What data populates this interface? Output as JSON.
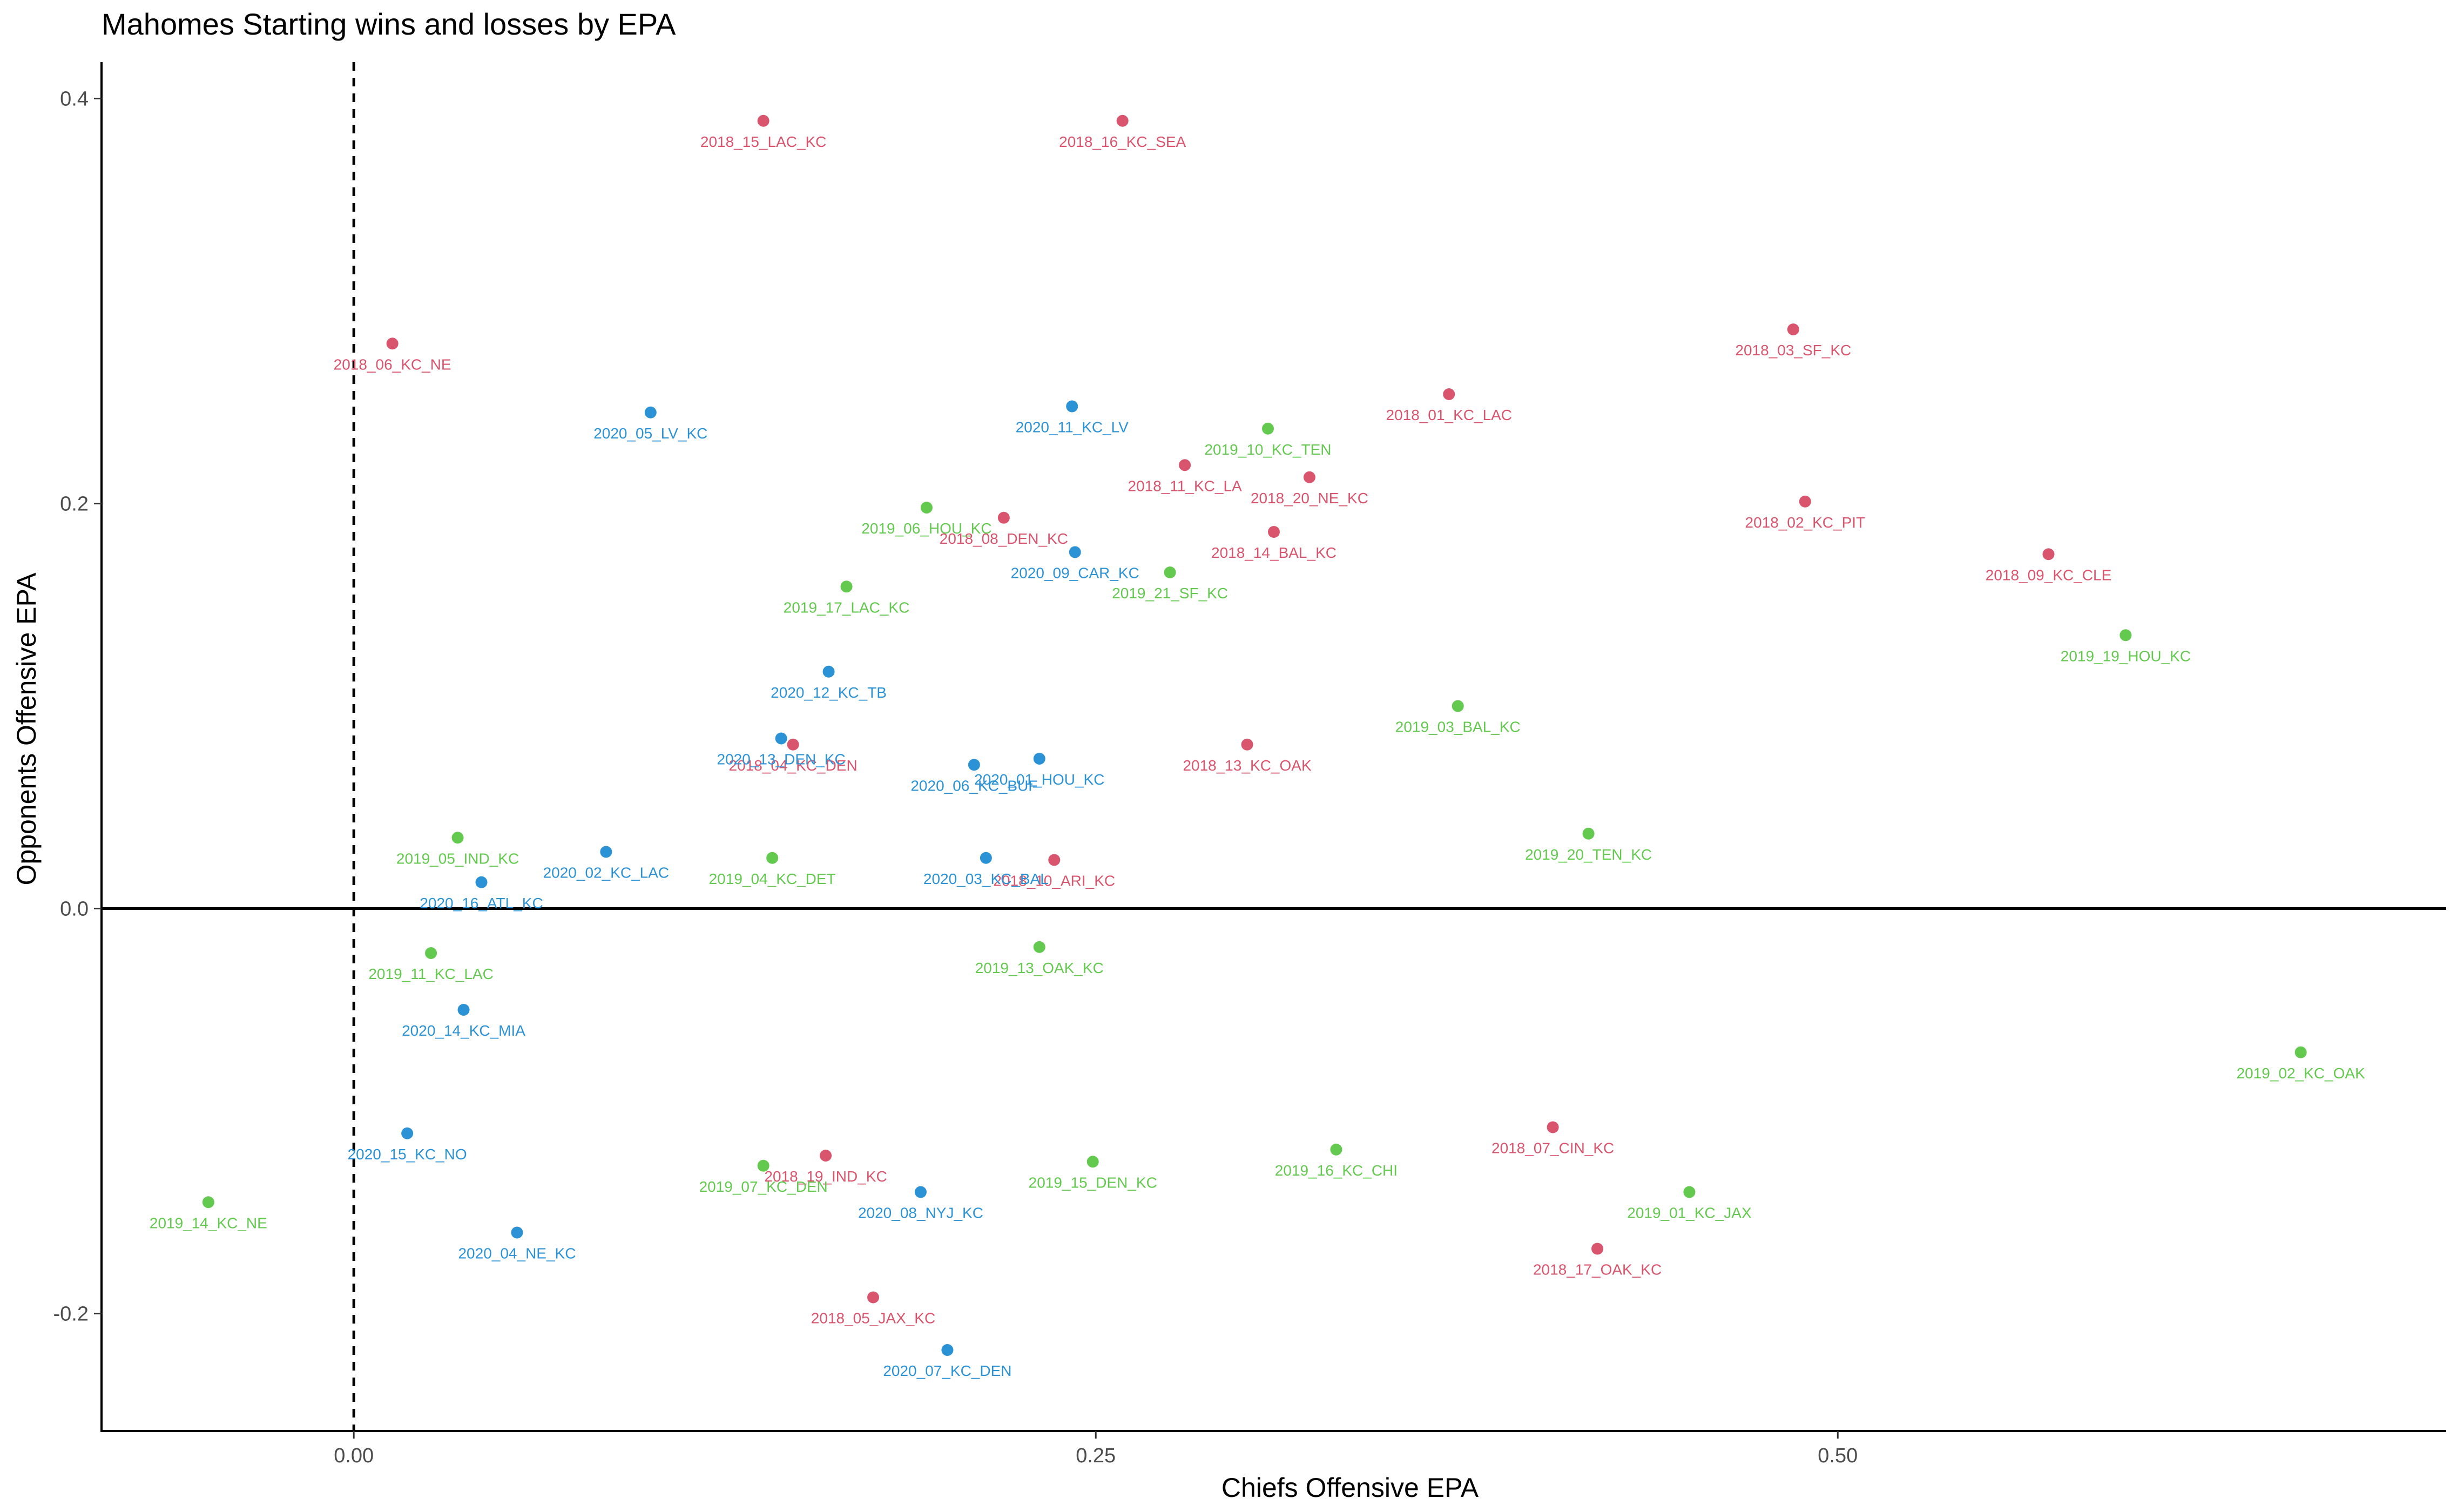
{
  "chart_data": {
    "type": "scatter",
    "title": "Mahomes Starting wins and losses by EPA",
    "xlabel": "Chiefs Offensive EPA",
    "ylabel": "Opponents Offensive EPA",
    "xlim": [
      -0.085,
      0.705
    ],
    "ylim": [
      -0.258,
      0.418
    ],
    "x_ticks": [
      {
        "value": 0.0,
        "label": "0.00"
      },
      {
        "value": 0.25,
        "label": "0.25"
      },
      {
        "value": 0.5,
        "label": "0.50"
      }
    ],
    "y_ticks": [
      {
        "value": 0.4,
        "label": "0.4"
      },
      {
        "value": 0.2,
        "label": "0.2"
      },
      {
        "value": 0.0,
        "label": "0.0"
      },
      {
        "value": -0.2,
        "label": "-0.2"
      }
    ],
    "reference_lines": [
      {
        "axis": "x",
        "value": 0,
        "style": "dashed"
      },
      {
        "axis": "y",
        "value": 0,
        "style": "solid"
      }
    ],
    "grid": false,
    "legend": "none",
    "colors": {
      "2018": "#d9546d",
      "2019": "#63c94f",
      "2020": "#2b92d6"
    },
    "series": [
      {
        "season": "2018",
        "points": [
          {
            "label": "2018_15_LAC_KC",
            "x": 0.138,
            "y": 0.389
          },
          {
            "label": "2018_16_KC_SEA",
            "x": 0.259,
            "y": 0.389
          },
          {
            "label": "2018_06_KC_NE",
            "x": 0.013,
            "y": 0.279
          },
          {
            "label": "2018_03_SF_KC",
            "x": 0.485,
            "y": 0.286
          },
          {
            "label": "2018_01_KC_LAC",
            "x": 0.369,
            "y": 0.254
          },
          {
            "label": "2018_11_KC_LA",
            "x": 0.28,
            "y": 0.219
          },
          {
            "label": "2018_20_NE_KC",
            "x": 0.322,
            "y": 0.213
          },
          {
            "label": "2018_02_KC_PIT",
            "x": 0.489,
            "y": 0.201
          },
          {
            "label": "2018_08_DEN_KC",
            "x": 0.219,
            "y": 0.193
          },
          {
            "label": "2018_14_BAL_KC",
            "x": 0.31,
            "y": 0.186
          },
          {
            "label": "2018_09_KC_CLE",
            "x": 0.571,
            "y": 0.175
          },
          {
            "label": "2018_04_KC_DEN",
            "x": 0.148,
            "y": 0.081
          },
          {
            "label": "2018_13_KC_OAK",
            "x": 0.301,
            "y": 0.081
          },
          {
            "label": "2018_10_ARI_KC",
            "x": 0.236,
            "y": 0.024
          },
          {
            "label": "2018_07_CIN_KC",
            "x": 0.404,
            "y": -0.108
          },
          {
            "label": "2018_19_IND_KC",
            "x": 0.159,
            "y": -0.122
          },
          {
            "label": "2018_17_OAK_KC",
            "x": 0.419,
            "y": -0.168
          },
          {
            "label": "2018_05_JAX_KC",
            "x": 0.175,
            "y": -0.192
          }
        ]
      },
      {
        "season": "2019",
        "points": [
          {
            "label": "2019_10_KC_TEN",
            "x": 0.308,
            "y": 0.237
          },
          {
            "label": "2019_06_HOU_KC",
            "x": 0.193,
            "y": 0.198
          },
          {
            "label": "2019_21_SF_KC",
            "x": 0.275,
            "y": 0.166
          },
          {
            "label": "2019_17_LAC_KC",
            "x": 0.166,
            "y": 0.159
          },
          {
            "label": "2019_19_HOU_KC",
            "x": 0.597,
            "y": 0.135
          },
          {
            "label": "2019_03_BAL_KC",
            "x": 0.372,
            "y": 0.1
          },
          {
            "label": "2019_05_IND_KC",
            "x": 0.035,
            "y": 0.035
          },
          {
            "label": "2019_20_TEN_KC",
            "x": 0.416,
            "y": 0.037
          },
          {
            "label": "2019_04_KC_DET",
            "x": 0.141,
            "y": 0.025
          },
          {
            "label": "2019_11_KC_LAC",
            "x": 0.026,
            "y": -0.022
          },
          {
            "label": "2019_13_OAK_KC",
            "x": 0.231,
            "y": -0.019
          },
          {
            "label": "2019_02_KC_OAK",
            "x": 0.656,
            "y": -0.071
          },
          {
            "label": "2019_16_KC_CHI",
            "x": 0.331,
            "y": -0.119
          },
          {
            "label": "2019_07_KC_DEN",
            "x": 0.138,
            "y": -0.127
          },
          {
            "label": "2019_15_DEN_KC",
            "x": 0.249,
            "y": -0.125
          },
          {
            "label": "2019_01_KC_JAX",
            "x": 0.45,
            "y": -0.14
          },
          {
            "label": "2019_14_KC_NE",
            "x": -0.049,
            "y": -0.145
          }
        ]
      },
      {
        "season": "2020",
        "points": [
          {
            "label": "2020_11_KC_LV",
            "x": 0.242,
            "y": 0.248
          },
          {
            "label": "2020_05_LV_KC",
            "x": 0.1,
            "y": 0.245
          },
          {
            "label": "2020_09_CAR_KC",
            "x": 0.243,
            "y": 0.176
          },
          {
            "label": "2020_12_KC_TB",
            "x": 0.16,
            "y": 0.117
          },
          {
            "label": "2020_13_DEN_KC",
            "x": 0.144,
            "y": 0.084
          },
          {
            "label": "2020_01_HOU_KC",
            "x": 0.231,
            "y": 0.074
          },
          {
            "label": "2020_06_KC_BUF",
            "x": 0.209,
            "y": 0.071
          },
          {
            "label": "2020_02_KC_LAC",
            "x": 0.085,
            "y": 0.028
          },
          {
            "label": "2020_03_KC_BAL",
            "x": 0.213,
            "y": 0.025
          },
          {
            "label": "2020_16_ATL_KC",
            "x": 0.043,
            "y": 0.013
          },
          {
            "label": "2020_14_KC_MIA",
            "x": 0.037,
            "y": -0.05
          },
          {
            "label": "2020_15_KC_NO",
            "x": 0.018,
            "y": -0.111
          },
          {
            "label": "2020_08_NYJ_KC",
            "x": 0.191,
            "y": -0.14
          },
          {
            "label": "2020_04_NE_KC",
            "x": 0.055,
            "y": -0.16
          },
          {
            "label": "2020_07_KC_DEN",
            "x": 0.2,
            "y": -0.218
          }
        ]
      }
    ]
  }
}
